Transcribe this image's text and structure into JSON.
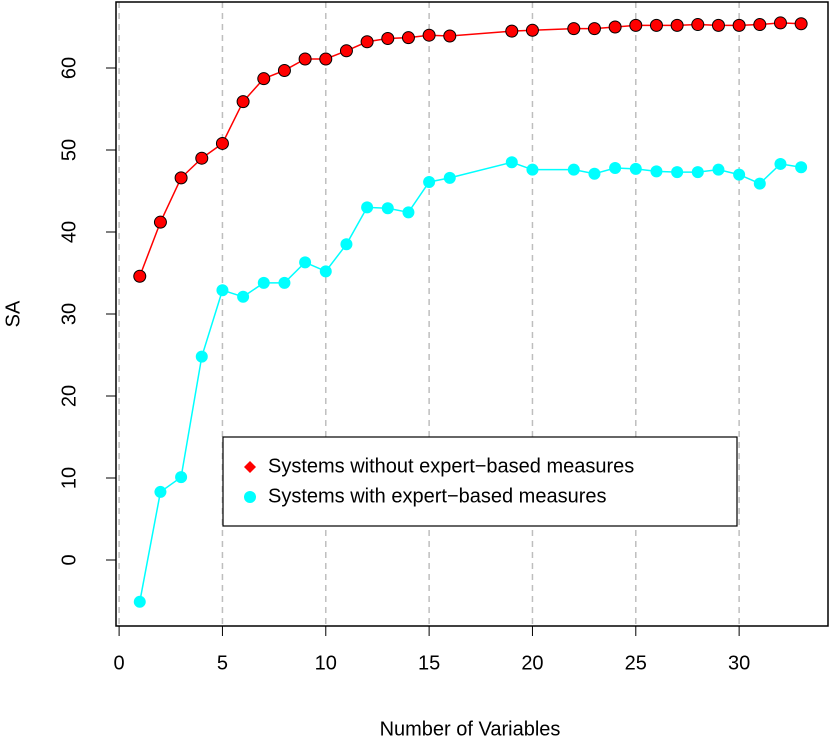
{
  "chart_data": {
    "type": "line",
    "x_label": "Number of Variables",
    "y_label": "SA",
    "x": [
      1,
      2,
      3,
      4,
      5,
      6,
      7,
      8,
      9,
      10,
      11,
      12,
      13,
      14,
      15,
      16,
      19,
      20,
      22,
      23,
      24,
      25,
      26,
      27,
      28,
      29,
      30,
      31,
      32,
      33
    ],
    "series": [
      {
        "name": "Systems without expert−based measures",
        "color": "#ff0000",
        "marker_edge": "#000000",
        "legend_marker": "diamond",
        "values": [
          34.6,
          41.2,
          46.6,
          49.0,
          50.8,
          55.9,
          58.7,
          59.7,
          61.1,
          61.1,
          62.1,
          63.2,
          63.6,
          63.7,
          64.0,
          63.9,
          64.5,
          64.6,
          64.8,
          64.8,
          65.0,
          65.2,
          65.2,
          65.2,
          65.3,
          65.2,
          65.2,
          65.3,
          65.5,
          65.4
        ]
      },
      {
        "name": "Systems with expert−based measures",
        "color": "#00ffff",
        "legend_marker": "circle",
        "values": [
          -5.1,
          8.3,
          10.1,
          24.8,
          32.9,
          32.1,
          33.8,
          33.8,
          36.3,
          35.2,
          38.5,
          43.0,
          42.9,
          42.4,
          46.1,
          46.6,
          48.5,
          47.6,
          47.6,
          47.1,
          47.8,
          47.7,
          47.4,
          47.3,
          47.3,
          47.6,
          47.0,
          45.9,
          48.3,
          47.9
        ]
      }
    ],
    "xlim": [
      -0.15,
      34.3
    ],
    "ylim": [
      -8.05,
      68.05
    ],
    "xticks": [
      0,
      5,
      10,
      15,
      20,
      25,
      30
    ],
    "yticks": [
      0,
      10,
      20,
      30,
      40,
      50,
      60
    ],
    "grid": "x-dashed"
  }
}
